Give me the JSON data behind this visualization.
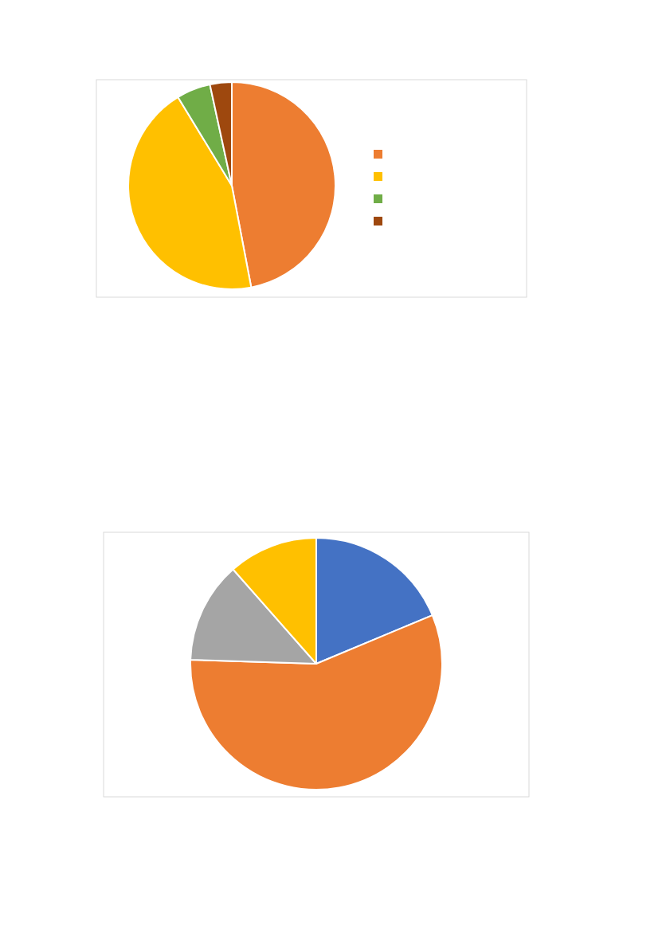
{
  "chart_data": [
    {
      "type": "pie",
      "categories": [
        null,
        null,
        null,
        null
      ],
      "values": [
        47,
        44.3,
        5.3,
        3.4
      ],
      "colors": [
        "#ed7d31",
        "#ffc000",
        "#70ad47",
        "#9e480e"
      ]
    },
    {
      "type": "pie",
      "categories": [
        null,
        null,
        null,
        null
      ],
      "values": [
        18.7,
        56.8,
        13,
        11.5
      ],
      "colors": [
        "#4472c4",
        "#ed7d31",
        "#a5a5a5",
        "#ffc000"
      ]
    }
  ]
}
